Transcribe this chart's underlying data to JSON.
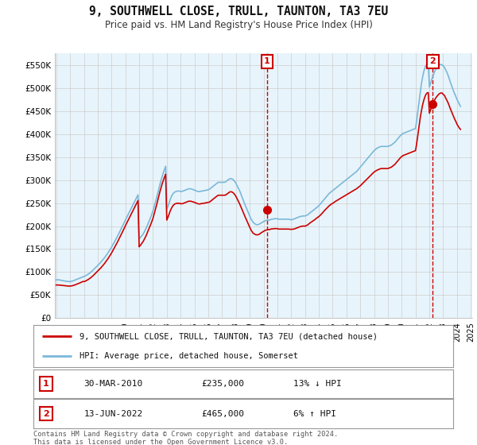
{
  "title": "9, SOUTHWELL CLOSE, TRULL, TAUNTON, TA3 7EU",
  "subtitle": "Price paid vs. HM Land Registry's House Price Index (HPI)",
  "legend_line1": "9, SOUTHWELL CLOSE, TRULL, TAUNTON, TA3 7EU (detached house)",
  "legend_line2": "HPI: Average price, detached house, Somerset",
  "annotation1_date": "30-MAR-2010",
  "annotation1_price": "£235,000",
  "annotation1_hpi": "13% ↓ HPI",
  "annotation2_date": "13-JUN-2022",
  "annotation2_price": "£465,000",
  "annotation2_hpi": "6% ↑ HPI",
  "footnote": "Contains HM Land Registry data © Crown copyright and database right 2024.\nThis data is licensed under the Open Government Licence v3.0.",
  "hpi_color": "#7ab8d9",
  "property_color": "#cc0000",
  "marker_color": "#cc0000",
  "annotation_box_color": "#cc0000",
  "fill_color": "#daeaf5",
  "ylim": [
    0,
    575000
  ],
  "yticks": [
    0,
    50000,
    100000,
    150000,
    200000,
    250000,
    300000,
    350000,
    400000,
    450000,
    500000,
    550000
  ],
  "ytick_labels": [
    "£0",
    "£50K",
    "£100K",
    "£150K",
    "£200K",
    "£250K",
    "£300K",
    "£350K",
    "£400K",
    "£450K",
    "£500K",
    "£550K"
  ],
  "hpi_x": [
    1995.0,
    1995.083,
    1995.167,
    1995.25,
    1995.333,
    1995.417,
    1995.5,
    1995.583,
    1995.667,
    1995.75,
    1995.833,
    1995.917,
    1996.0,
    1996.083,
    1996.167,
    1996.25,
    1996.333,
    1996.417,
    1996.5,
    1996.583,
    1996.667,
    1996.75,
    1996.833,
    1996.917,
    1997.0,
    1997.083,
    1997.167,
    1997.25,
    1997.333,
    1997.417,
    1997.5,
    1997.583,
    1997.667,
    1997.75,
    1997.833,
    1997.917,
    1998.0,
    1998.083,
    1998.167,
    1998.25,
    1998.333,
    1998.417,
    1998.5,
    1998.583,
    1998.667,
    1998.75,
    1998.833,
    1998.917,
    1999.0,
    1999.083,
    1999.167,
    1999.25,
    1999.333,
    1999.417,
    1999.5,
    1999.583,
    1999.667,
    1999.75,
    1999.833,
    1999.917,
    2000.0,
    2000.083,
    2000.167,
    2000.25,
    2000.333,
    2000.417,
    2000.5,
    2000.583,
    2000.667,
    2000.75,
    2000.833,
    2000.917,
    2001.0,
    2001.083,
    2001.167,
    2001.25,
    2001.333,
    2001.417,
    2001.5,
    2001.583,
    2001.667,
    2001.75,
    2001.833,
    2001.917,
    2002.0,
    2002.083,
    2002.167,
    2002.25,
    2002.333,
    2002.417,
    2002.5,
    2002.583,
    2002.667,
    2002.75,
    2002.833,
    2002.917,
    2003.0,
    2003.083,
    2003.167,
    2003.25,
    2003.333,
    2003.417,
    2003.5,
    2003.583,
    2003.667,
    2003.75,
    2003.833,
    2003.917,
    2004.0,
    2004.083,
    2004.167,
    2004.25,
    2004.333,
    2004.417,
    2004.5,
    2004.583,
    2004.667,
    2004.75,
    2004.833,
    2004.917,
    2005.0,
    2005.083,
    2005.167,
    2005.25,
    2005.333,
    2005.417,
    2005.5,
    2005.583,
    2005.667,
    2005.75,
    2005.833,
    2005.917,
    2006.0,
    2006.083,
    2006.167,
    2006.25,
    2006.333,
    2006.417,
    2006.5,
    2006.583,
    2006.667,
    2006.75,
    2006.833,
    2006.917,
    2007.0,
    2007.083,
    2007.167,
    2007.25,
    2007.333,
    2007.417,
    2007.5,
    2007.583,
    2007.667,
    2007.75,
    2007.833,
    2007.917,
    2008.0,
    2008.083,
    2008.167,
    2008.25,
    2008.333,
    2008.417,
    2008.5,
    2008.583,
    2008.667,
    2008.75,
    2008.833,
    2008.917,
    2009.0,
    2009.083,
    2009.167,
    2009.25,
    2009.333,
    2009.417,
    2009.5,
    2009.583,
    2009.667,
    2009.75,
    2009.833,
    2009.917,
    2010.0,
    2010.083,
    2010.167,
    2010.25,
    2010.333,
    2010.417,
    2010.5,
    2010.583,
    2010.667,
    2010.75,
    2010.833,
    2010.917,
    2011.0,
    2011.083,
    2011.167,
    2011.25,
    2011.333,
    2011.417,
    2011.5,
    2011.583,
    2011.667,
    2011.75,
    2011.833,
    2011.917,
    2012.0,
    2012.083,
    2012.167,
    2012.25,
    2012.333,
    2012.417,
    2012.5,
    2012.583,
    2012.667,
    2012.75,
    2012.833,
    2012.917,
    2013.0,
    2013.083,
    2013.167,
    2013.25,
    2013.333,
    2013.417,
    2013.5,
    2013.583,
    2013.667,
    2013.75,
    2013.833,
    2013.917,
    2014.0,
    2014.083,
    2014.167,
    2014.25,
    2014.333,
    2014.417,
    2014.5,
    2014.583,
    2014.667,
    2014.75,
    2014.833,
    2014.917,
    2015.0,
    2015.083,
    2015.167,
    2015.25,
    2015.333,
    2015.417,
    2015.5,
    2015.583,
    2015.667,
    2015.75,
    2015.833,
    2015.917,
    2016.0,
    2016.083,
    2016.167,
    2016.25,
    2016.333,
    2016.417,
    2016.5,
    2016.583,
    2016.667,
    2016.75,
    2016.833,
    2016.917,
    2017.0,
    2017.083,
    2017.167,
    2017.25,
    2017.333,
    2017.417,
    2017.5,
    2017.583,
    2017.667,
    2017.75,
    2017.833,
    2017.917,
    2018.0,
    2018.083,
    2018.167,
    2018.25,
    2018.333,
    2018.417,
    2018.5,
    2018.583,
    2018.667,
    2018.75,
    2018.833,
    2018.917,
    2019.0,
    2019.083,
    2019.167,
    2019.25,
    2019.333,
    2019.417,
    2019.5,
    2019.583,
    2019.667,
    2019.75,
    2019.833,
    2019.917,
    2020.0,
    2020.083,
    2020.167,
    2020.25,
    2020.333,
    2020.417,
    2020.5,
    2020.583,
    2020.667,
    2020.75,
    2020.833,
    2020.917,
    2021.0,
    2021.083,
    2021.167,
    2021.25,
    2021.333,
    2021.417,
    2021.5,
    2021.583,
    2021.667,
    2021.75,
    2021.833,
    2021.917,
    2022.0,
    2022.083,
    2022.167,
    2022.25,
    2022.333,
    2022.417,
    2022.5,
    2022.583,
    2022.667,
    2022.75,
    2022.833,
    2022.917,
    2023.0,
    2023.083,
    2023.167,
    2023.25,
    2023.333,
    2023.417,
    2023.5,
    2023.583,
    2023.667,
    2023.75,
    2023.833,
    2023.917,
    2024.0,
    2024.083,
    2024.167,
    2024.25
  ],
  "hpi_y": [
    83000,
    83500,
    83200,
    82800,
    82500,
    82000,
    81500,
    81000,
    80500,
    80000,
    79800,
    79500,
    79500,
    80000,
    80500,
    81500,
    82500,
    83500,
    84500,
    85500,
    86500,
    87500,
    88500,
    89500,
    90500,
    91500,
    93000,
    94500,
    96000,
    98000,
    100000,
    102000,
    104500,
    107000,
    109500,
    112000,
    114500,
    117000,
    119500,
    122500,
    125500,
    128500,
    131500,
    135000,
    138500,
    142000,
    146000,
    150000,
    154000,
    158500,
    163000,
    167500,
    172000,
    177000,
    182000,
    187000,
    192000,
    197000,
    202000,
    207500,
    213000,
    218000,
    223000,
    228000,
    233000,
    238000,
    243000,
    248000,
    253000,
    258000,
    263000,
    268000,
    172000,
    175000,
    178000,
    181000,
    185000,
    190000,
    195000,
    201000,
    207000,
    213000,
    219000,
    226000,
    233000,
    242000,
    251000,
    260000,
    270000,
    280000,
    290000,
    299000,
    308000,
    316000,
    323000,
    330000,
    236000,
    243000,
    250000,
    258000,
    264000,
    269000,
    272000,
    274000,
    275000,
    276000,
    276000,
    276000,
    275000,
    275000,
    276000,
    277000,
    278000,
    279000,
    280000,
    281000,
    281000,
    281000,
    280000,
    279000,
    278000,
    277000,
    276000,
    275000,
    275000,
    275000,
    276000,
    276000,
    277000,
    277000,
    278000,
    278000,
    279000,
    280000,
    282000,
    284000,
    286000,
    288000,
    290000,
    292000,
    294000,
    295000,
    295000,
    295000,
    295000,
    295000,
    295000,
    296000,
    298000,
    300000,
    302000,
    303000,
    303000,
    302000,
    300000,
    297000,
    293000,
    288000,
    283000,
    278000,
    272000,
    265000,
    259000,
    252000,
    246000,
    240000,
    234000,
    228000,
    222000,
    216000,
    212000,
    208000,
    206000,
    204000,
    203000,
    203000,
    204000,
    205000,
    207000,
    208000,
    210000,
    211000,
    212000,
    213000,
    213000,
    213000,
    214000,
    215000,
    215000,
    216000,
    216000,
    216000,
    216000,
    215000,
    215000,
    215000,
    215000,
    215000,
    215000,
    215000,
    215000,
    215000,
    215000,
    214000,
    214000,
    214000,
    215000,
    216000,
    217000,
    218000,
    219000,
    220000,
    221000,
    221000,
    222000,
    222000,
    222000,
    223000,
    224000,
    226000,
    228000,
    230000,
    232000,
    234000,
    236000,
    238000,
    240000,
    242000,
    244000,
    247000,
    250000,
    253000,
    256000,
    259000,
    262000,
    265000,
    268000,
    271000,
    273000,
    275000,
    277000,
    279000,
    281000,
    283000,
    285000,
    287000,
    289000,
    291000,
    293000,
    295000,
    297000,
    299000,
    301000,
    303000,
    305000,
    307000,
    309000,
    311000,
    313000,
    315000,
    317000,
    319000,
    322000,
    325000,
    328000,
    331000,
    334000,
    337000,
    340000,
    343000,
    346000,
    349000,
    352000,
    355000,
    358000,
    361000,
    364000,
    366000,
    368000,
    370000,
    371000,
    372000,
    373000,
    373000,
    373000,
    373000,
    373000,
    373000,
    373000,
    374000,
    375000,
    376000,
    378000,
    380000,
    382000,
    385000,
    388000,
    391000,
    394000,
    397000,
    399000,
    401000,
    402000,
    403000,
    404000,
    405000,
    406000,
    407000,
    408000,
    409000,
    410000,
    411000,
    412000,
    430000,
    450000,
    470000,
    490000,
    508000,
    522000,
    534000,
    543000,
    549000,
    552000,
    553000,
    502000,
    510000,
    518000,
    525000,
    532000,
    538000,
    543000,
    547000,
    550000,
    551000,
    551000,
    550000,
    548000,
    545000,
    540000,
    535000,
    529000,
    522000,
    514000,
    507000,
    500000,
    493000,
    487000,
    481000,
    475000,
    470000,
    465000,
    460000
  ],
  "prop_y": [
    72000,
    72200,
    72000,
    71800,
    71500,
    71200,
    70900,
    70600,
    70300,
    70000,
    69900,
    69700,
    69700,
    70100,
    70500,
    71200,
    72000,
    73000,
    74000,
    75000,
    76000,
    77200,
    78400,
    79500,
    79500,
    80200,
    81400,
    82800,
    84300,
    86100,
    88000,
    90000,
    92200,
    94700,
    97200,
    99700,
    102000,
    104500,
    107000,
    110000,
    113000,
    116000,
    119000,
    122500,
    126000,
    129500,
    133500,
    137500,
    141500,
    146000,
    150500,
    155000,
    159500,
    164500,
    169500,
    174500,
    179500,
    184500,
    189500,
    195000,
    200500,
    205500,
    210500,
    215500,
    220500,
    225500,
    230500,
    235500,
    240500,
    245500,
    250500,
    255500,
    155000,
    158000,
    161500,
    165000,
    169000,
    174000,
    179000,
    185000,
    191000,
    197000,
    203500,
    210000,
    217000,
    226000,
    235000,
    244500,
    254500,
    264500,
    274500,
    283500,
    292000,
    299500,
    306500,
    312500,
    213000,
    219000,
    226000,
    233000,
    238500,
    243000,
    246000,
    248000,
    249000,
    249500,
    249500,
    249500,
    248500,
    248500,
    249000,
    250000,
    251000,
    252000,
    253000,
    254000,
    254000,
    254000,
    253000,
    252500,
    251500,
    250500,
    249500,
    248500,
    248000,
    248000,
    249000,
    249000,
    249500,
    250000,
    250500,
    251000,
    251500,
    252000,
    254000,
    256000,
    258000,
    260000,
    262000,
    264000,
    266000,
    267000,
    267000,
    267000,
    267000,
    267000,
    267000,
    267500,
    269000,
    271000,
    273000,
    274500,
    274500,
    273500,
    271500,
    268500,
    264500,
    259500,
    254500,
    249500,
    244000,
    238000,
    232000,
    226000,
    220000,
    214500,
    209000,
    203500,
    197500,
    192000,
    188000,
    184500,
    183000,
    181500,
    181000,
    181000,
    182000,
    183500,
    185500,
    187000,
    188500,
    190000,
    191000,
    192000,
    192500,
    192500,
    193000,
    194000,
    194000,
    194500,
    194500,
    194500,
    194500,
    193500,
    193500,
    193500,
    193500,
    193500,
    193500,
    193500,
    193500,
    193500,
    193500,
    193000,
    193000,
    193000,
    193500,
    194000,
    195000,
    196000,
    197000,
    198000,
    199000,
    199500,
    200000,
    200000,
    200000,
    201000,
    202000,
    204000,
    206000,
    208000,
    209500,
    211500,
    213000,
    215000,
    217000,
    219000,
    220500,
    223000,
    225500,
    228000,
    231000,
    234000,
    236500,
    239000,
    241500,
    244000,
    246000,
    248000,
    249500,
    251000,
    253000,
    254500,
    256000,
    257500,
    259000,
    260500,
    262000,
    263500,
    265000,
    266500,
    268000,
    269500,
    271000,
    272500,
    274000,
    275500,
    277000,
    278500,
    280000,
    281500,
    283500,
    285500,
    287500,
    290000,
    292500,
    295000,
    297500,
    300000,
    302500,
    305000,
    307500,
    310000,
    312500,
    315000,
    317500,
    319000,
    320500,
    322000,
    323000,
    324000,
    325000,
    325000,
    325000,
    325000,
    325000,
    325000,
    325000,
    326000,
    327000,
    328000,
    330000,
    332000,
    334000,
    337000,
    340000,
    343000,
    346000,
    349000,
    351000,
    353000,
    354000,
    355000,
    356000,
    357000,
    358000,
    359000,
    360000,
    361000,
    362000,
    363000,
    364000,
    380000,
    398000,
    416000,
    434000,
    449000,
    462000,
    472000,
    480000,
    486000,
    489000,
    490000,
    445000,
    452000,
    459000,
    465000,
    471000,
    476000,
    480000,
    483000,
    486000,
    488000,
    489000,
    489000,
    486000,
    484000,
    479000,
    474000,
    469000,
    463000,
    456000,
    450000,
    444000,
    438000,
    432000,
    427000,
    421000,
    417000,
    413000,
    410000
  ],
  "sale1_x": 2010.25,
  "sale1_y": 235000,
  "sale2_x": 2022.25,
  "sale2_y": 465000,
  "vline1_x": 2010.25,
  "vline2_x": 2022.25,
  "xlim": [
    1994.9,
    2025.1
  ],
  "bg_color": "#ffffff",
  "plot_bg_color": "#e8f4fb",
  "grid_color": "#cccccc"
}
